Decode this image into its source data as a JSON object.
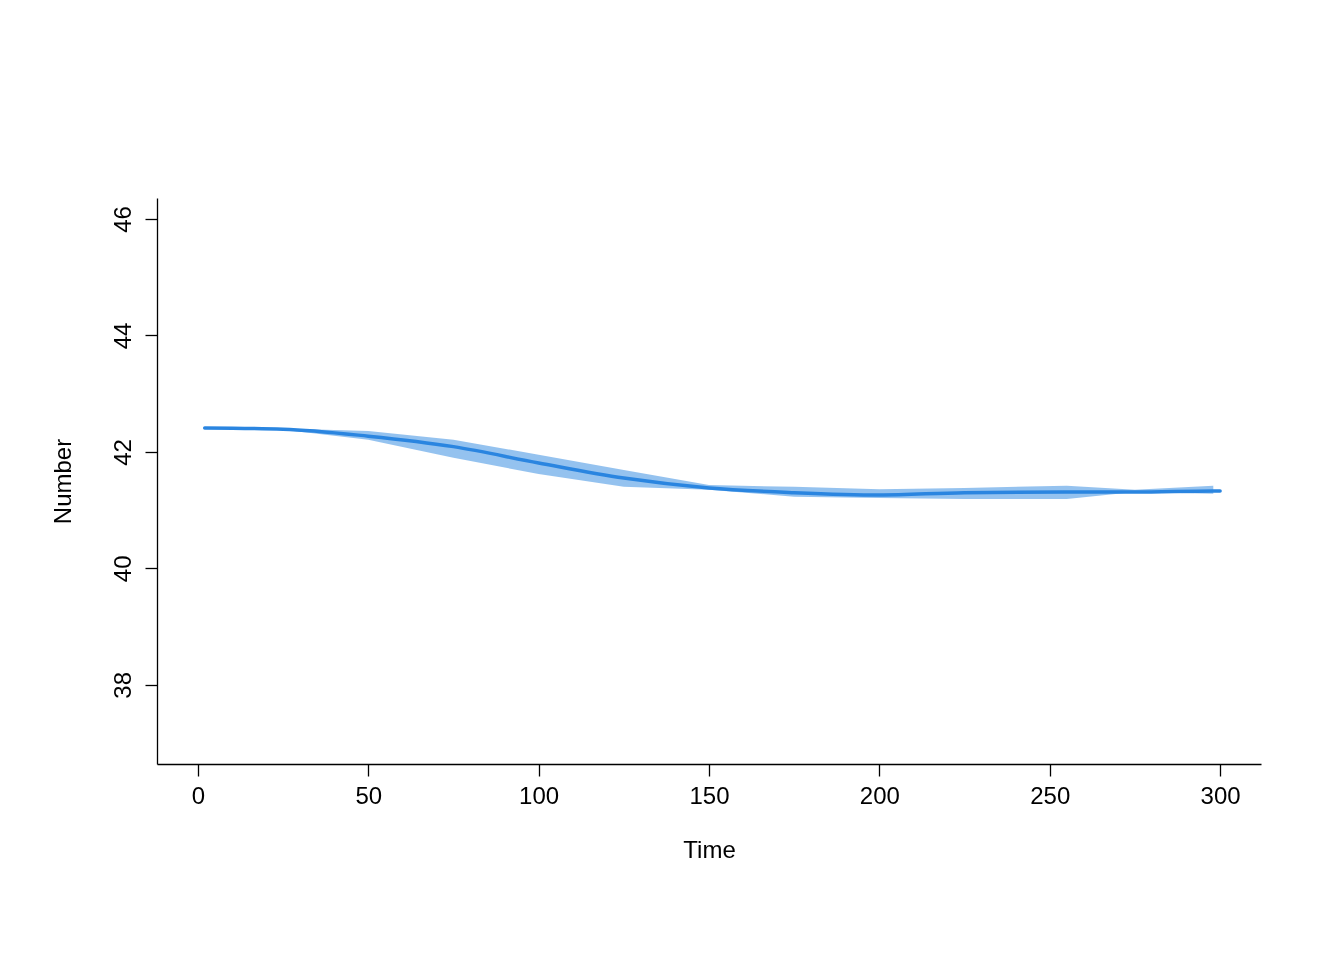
{
  "chart_data": {
    "type": "line",
    "xlabel": "Time",
    "ylabel": "Number",
    "x": [
      2,
      25,
      50,
      75,
      100,
      125,
      150,
      175,
      200,
      225,
      255,
      275,
      298,
      300
    ],
    "series": [
      {
        "color": "#2a85e0",
        "values": [
          42.41,
          42.39,
          42.27,
          42.09,
          41.81,
          41.55,
          41.38,
          41.3,
          41.26,
          41.3,
          41.31,
          41.31,
          41.33,
          41.33
        ],
        "lower": [
          42.41,
          42.38,
          42.21,
          41.9,
          41.62,
          41.4,
          41.35,
          41.23,
          41.21,
          41.19,
          41.19,
          41.31,
          41.28,
          null
        ],
        "upper": [
          42.41,
          42.4,
          42.36,
          42.21,
          41.95,
          41.69,
          41.43,
          41.4,
          41.36,
          41.38,
          41.42,
          41.35,
          41.42,
          null
        ]
      }
    ],
    "xlim": [
      -12,
      312
    ],
    "ylim": [
      36.64,
      46.36
    ],
    "xticks": [
      0,
      50,
      100,
      150,
      200,
      250,
      300
    ],
    "yticks": [
      38,
      40,
      42,
      44,
      46
    ],
    "grid": false
  }
}
